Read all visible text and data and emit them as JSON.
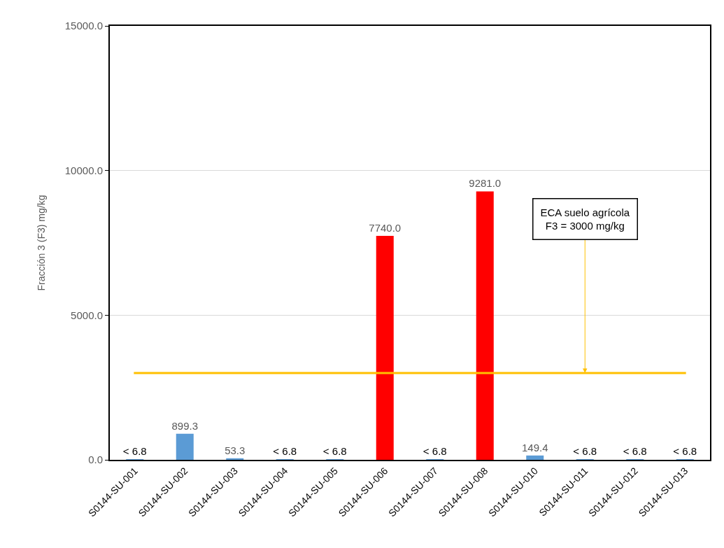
{
  "chart_data": {
    "type": "bar",
    "ylabel": "Fracción 3 (F3) mg/kg",
    "categories": [
      "S0144-SU-001",
      "S0144-SU-002",
      "S0144-SU-003",
      "S0144-SU-004",
      "S0144-SU-005",
      "S0144-SU-006",
      "S0144-SU-007",
      "S0144-SU-008",
      "S0144-SU-010",
      "S0144-SU-011",
      "S0144-SU-012",
      "S0144-SU-013"
    ],
    "values": [
      6.8,
      899.3,
      53.3,
      6.8,
      6.8,
      7740.0,
      6.8,
      9281.0,
      149.4,
      6.8,
      6.8,
      6.8
    ],
    "colors": [
      "#5b9bd5",
      "#5b9bd5",
      "#5b9bd5",
      "#5b9bd5",
      "#5b9bd5",
      "#ff0000",
      "#5b9bd5",
      "#ff0000",
      "#5b9bd5",
      "#5b9bd5",
      "#5b9bd5",
      "#5b9bd5"
    ],
    "value_labels": [
      "< 6.8",
      "899.3",
      "53.3",
      "< 6.8",
      "< 6.8",
      "7740.0",
      "< 6.8",
      "9281.0",
      "149.4",
      "< 6.8",
      "< 6.8",
      "< 6.8"
    ],
    "ylim": [
      0,
      15000
    ],
    "yticks": [
      {
        "value": 0,
        "label": "0.0"
      },
      {
        "value": 5000,
        "label": "5000.0"
      },
      {
        "value": 10000,
        "label": "10000.0"
      },
      {
        "value": 15000,
        "label": "15000.0"
      }
    ],
    "grid": "y",
    "legend": false,
    "ref_lines": [
      {
        "axis": "y",
        "value": 3000,
        "color": "#ffc000"
      }
    ],
    "annotations": [
      {
        "text": "ECA suelo agrícola\nF3 = 3000 mg/kg",
        "x": "S0144-SU-011",
        "y": 3000
      }
    ]
  }
}
